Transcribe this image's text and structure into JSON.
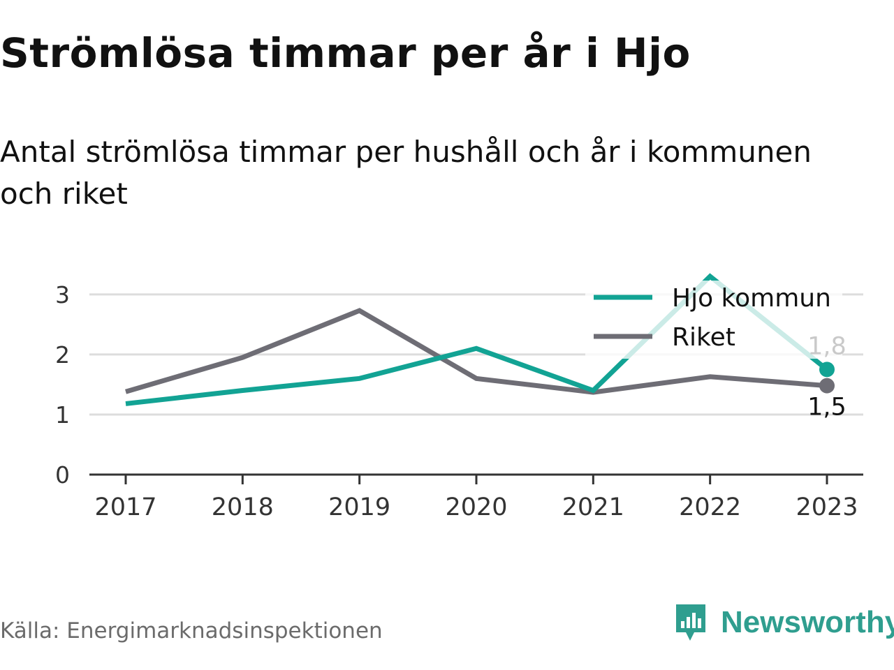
{
  "title": "Strömlösa timmar per år i Hjo",
  "subtitle": "Antal strömlösa timmar per hushåll och år i kommunen och riket",
  "source": "Källa: Energimarknadsinspektionen",
  "brand": {
    "name": "Newsworthy",
    "icon": "newsworthy-logo-icon",
    "color": "#2f9e8f"
  },
  "chart_data": {
    "type": "line",
    "x": [
      "2017",
      "2018",
      "2019",
      "2020",
      "2021",
      "2022",
      "2023"
    ],
    "series": [
      {
        "name": "Hjo kommun",
        "color": "#12a394",
        "values": [
          1.18,
          1.4,
          1.6,
          2.1,
          1.4,
          3.3,
          1.75
        ],
        "end_label": "1,8"
      },
      {
        "name": "Riket",
        "color": "#6e6d75",
        "values": [
          1.38,
          1.95,
          2.73,
          1.6,
          1.37,
          1.63,
          1.48
        ],
        "end_label": "1,5"
      }
    ],
    "y_ticks": [
      "0",
      "1",
      "2",
      "3"
    ],
    "ylim": [
      0,
      3.3
    ],
    "grid": true,
    "legend": "top-right",
    "xlabel": "",
    "ylabel": ""
  }
}
